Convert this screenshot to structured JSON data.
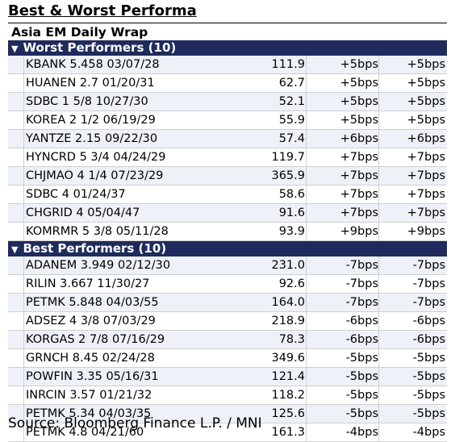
{
  "title": "Best & Worst Performa",
  "subtitle": "Asia EM Daily Wrap",
  "worst": {
    "header": "Worst Performers (10)",
    "rows": [
      {
        "name": "KBANK 5.458 03/07/28",
        "value": "111.9",
        "d1": "+5bps",
        "d2": "+5bps"
      },
      {
        "name": "HUANEN 2.7 01/20/31",
        "value": "62.7",
        "d1": "+5bps",
        "d2": "+5bps"
      },
      {
        "name": "SDBC 1 5/8 10/27/30",
        "value": "52.1",
        "d1": "+5bps",
        "d2": "+5bps"
      },
      {
        "name": "KOREA 2 1/2 06/19/29",
        "value": "55.9",
        "d1": "+5bps",
        "d2": "+5bps"
      },
      {
        "name": "YANTZE 2.15 09/22/30",
        "value": "57.4",
        "d1": "+6bps",
        "d2": "+6bps"
      },
      {
        "name": "HYNCRD 5 3/4 04/24/29",
        "value": "119.7",
        "d1": "+7bps",
        "d2": "+7bps"
      },
      {
        "name": "CHJMAO 4 1/4 07/23/29",
        "value": "365.9",
        "d1": "+7bps",
        "d2": "+7bps"
      },
      {
        "name": "SDBC 4 01/24/37",
        "value": "58.6",
        "d1": "+7bps",
        "d2": "+7bps"
      },
      {
        "name": "CHGRID 4 05/04/47",
        "value": "91.6",
        "d1": "+7bps",
        "d2": "+7bps"
      },
      {
        "name": "KOMRMR 5 3/8 05/11/28",
        "value": "93.9",
        "d1": "+9bps",
        "d2": "+9bps"
      }
    ]
  },
  "best": {
    "header": "Best Performers (10)",
    "rows": [
      {
        "name": "ADANEM 3.949 02/12/30",
        "value": "231.0",
        "d1": "-7bps",
        "d2": "-7bps"
      },
      {
        "name": "RILIN 3.667 11/30/27",
        "value": "92.6",
        "d1": "-7bps",
        "d2": "-7bps"
      },
      {
        "name": "PETMK 5.848 04/03/55",
        "value": "164.0",
        "d1": "-7bps",
        "d2": "-7bps"
      },
      {
        "name": "ADSEZ 4 3/8 07/03/29",
        "value": "218.9",
        "d1": "-6bps",
        "d2": "-6bps"
      },
      {
        "name": "KORGAS 2 7/8 07/16/29",
        "value": "78.3",
        "d1": "-6bps",
        "d2": "-6bps"
      },
      {
        "name": "GRNCH 8.45 02/24/28",
        "value": "349.6",
        "d1": "-5bps",
        "d2": "-5bps"
      },
      {
        "name": "POWFIN 3.35 05/16/31",
        "value": "121.4",
        "d1": "-5bps",
        "d2": "-5bps"
      },
      {
        "name": "INRCIN 3.57 01/21/32",
        "value": "118.2",
        "d1": "-5bps",
        "d2": "-5bps"
      },
      {
        "name": "PETMK 5.34 04/03/35",
        "value": "125.6",
        "d1": "-5bps",
        "d2": "-5bps"
      },
      {
        "name": "PETMK 4.8 04/21/60",
        "value": "161.3",
        "d1": "-4bps",
        "d2": "-4bps"
      }
    ]
  },
  "source": "Source: Bloomberg Finance L.P. / MNI",
  "icons": {
    "section_arrow": "triangle-down-icon"
  },
  "colors": {
    "header_bg": "#1f2b5c",
    "header_text": "#ffffff",
    "row_alt": "#eef1f7"
  }
}
